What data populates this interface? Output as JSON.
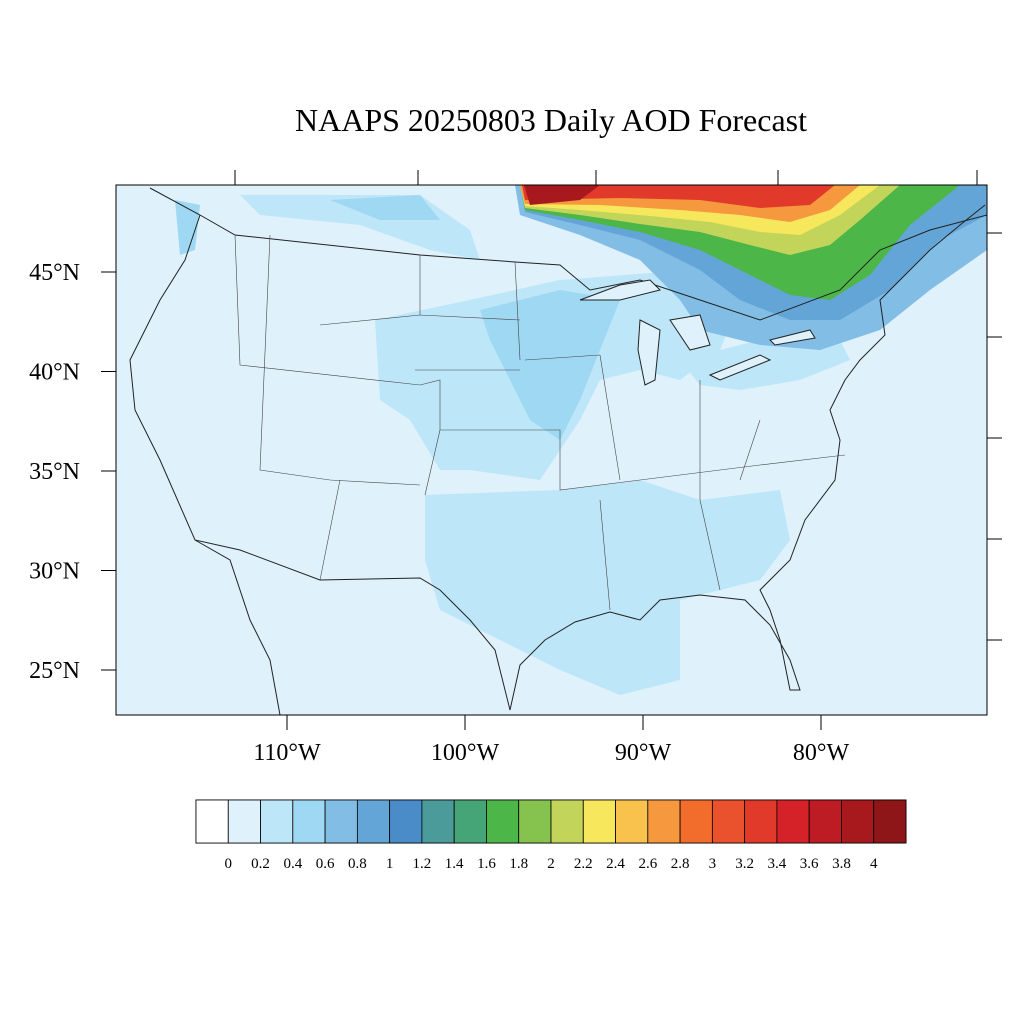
{
  "title": "NAAPS 20250803 Daily AOD Forecast",
  "lat_ticks": [
    {
      "value": 45,
      "label": "45°N"
    },
    {
      "value": 40,
      "label": "40°N"
    },
    {
      "value": 35,
      "label": "35°N"
    },
    {
      "value": 30,
      "label": "30°N"
    },
    {
      "value": 25,
      "label": "25°N"
    }
  ],
  "lon_ticks": [
    {
      "value": -110,
      "label": "110°W"
    },
    {
      "value": -100,
      "label": "100°W"
    },
    {
      "value": -90,
      "label": "90°W"
    },
    {
      "value": -80,
      "label": "80°W"
    }
  ],
  "colorbar": {
    "levels": [
      0,
      0.2,
      0.4,
      0.6,
      0.8,
      1,
      1.2,
      1.4,
      1.6,
      1.8,
      2,
      2.2,
      2.4,
      2.6,
      2.8,
      3,
      3.2,
      3.4,
      3.6,
      3.8,
      4
    ],
    "colors": [
      "#ffffff",
      "#dff1fb",
      "#bde6f8",
      "#9fd8f3",
      "#82bde6",
      "#64a5d8",
      "#4a8cc8",
      "#4b9b9b",
      "#46a576",
      "#4cb648",
      "#86c34e",
      "#c2d55a",
      "#f6e75c",
      "#f9c24c",
      "#f6983e",
      "#f26c2c",
      "#e9522c",
      "#e13a2a",
      "#d42228",
      "#bd1c24",
      "#a8191e",
      "#8f1618"
    ]
  }
}
